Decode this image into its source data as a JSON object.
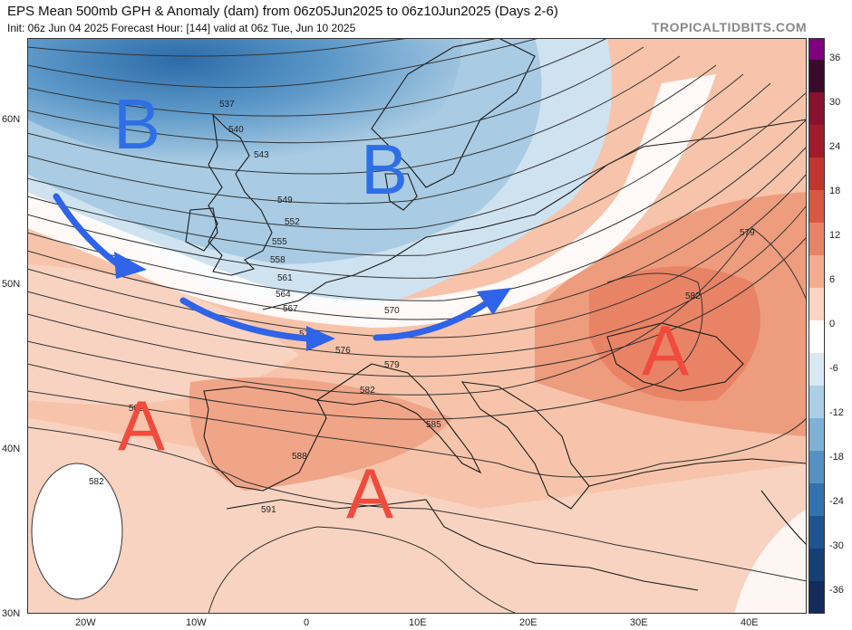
{
  "header": {
    "title": "EPS Mean 500mb GPH & Anomaly (dam) from 06z05Jun2025 to 06z10Jun2025 (Days 2-6)",
    "subtitle": "Init: 06z Jun 04 2025   Forecast Hour: [144]   valid at 06z Tue, Jun 10 2025",
    "brand": "TROPICALTIDBITS.COM"
  },
  "axes": {
    "lat_labels": [
      "60N",
      "50N",
      "40N",
      "30N"
    ],
    "lon_labels": [
      "20W",
      "10W",
      "0",
      "10E",
      "20E",
      "30E",
      "40E"
    ]
  },
  "contour_labels": [
    "537",
    "540",
    "543",
    "549",
    "552",
    "555",
    "558",
    "561",
    "564",
    "567",
    "570",
    "573",
    "576",
    "579",
    "579",
    "582",
    "582",
    "582",
    "582",
    "585",
    "588",
    "591"
  ],
  "annotations": {
    "low_1": "B",
    "low_2": "B",
    "high_west": "A",
    "high_south": "A",
    "high_east": "A"
  },
  "colorbar": {
    "labels": [
      "36",
      "30",
      "24",
      "18",
      "12",
      "6",
      "0",
      "-6",
      "-12",
      "-18",
      "-24",
      "-30",
      "-36"
    ],
    "colors": [
      "#3a0a2a",
      "#8a1030",
      "#a01a2a",
      "#c0362e",
      "#d8593f",
      "#e98366",
      "#f4ac8f",
      "#fbd5c2",
      "#ffffff",
      "#d9e9f4",
      "#abcfe5",
      "#7fb1d6",
      "#5591c3",
      "#3272ae",
      "#1e5591",
      "#173f76",
      "#122a5c"
    ],
    "top_color": "#800080"
  },
  "arrow_color": "#2f63e8",
  "letter_colors": {
    "low": "#2f6fe6",
    "high": "#f04b3c"
  }
}
